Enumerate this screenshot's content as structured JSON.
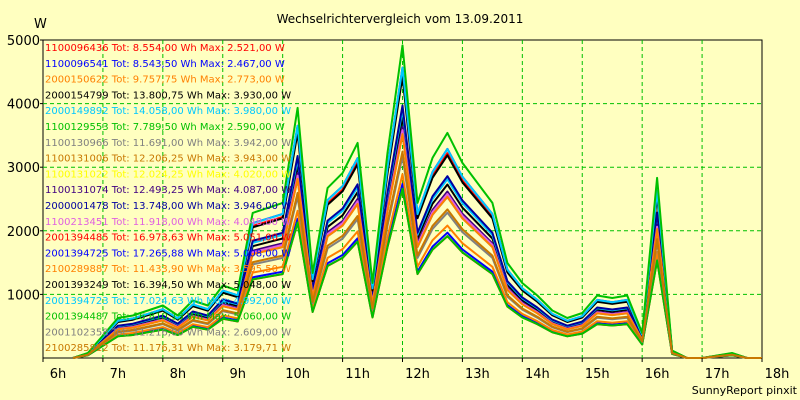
{
  "chart_data": {
    "type": "line",
    "title": "Wechselrichtervergleich vom 13.09.2011",
    "ylabel": "W",
    "footer": "SunnyReport pinxit",
    "ylim": [
      0,
      5000
    ],
    "xlim": [
      6,
      18
    ],
    "x_ticks": [
      {
        "v": 6,
        "label": "6h"
      },
      {
        "v": 7,
        "label": "7h"
      },
      {
        "v": 8,
        "label": "8h"
      },
      {
        "v": 9,
        "label": "9h"
      },
      {
        "v": 10,
        "label": "10h"
      },
      {
        "v": 11,
        "label": "11h"
      },
      {
        "v": 12,
        "label": "12h"
      },
      {
        "v": 13,
        "label": "13h"
      },
      {
        "v": 14,
        "label": "14h"
      },
      {
        "v": 15,
        "label": "15h"
      },
      {
        "v": 16,
        "label": "16h"
      },
      {
        "v": 17,
        "label": "17h"
      },
      {
        "v": 18,
        "label": "18h"
      }
    ],
    "y_ticks": [
      {
        "v": 1000,
        "label": "1000"
      },
      {
        "v": 2000,
        "label": "2000"
      },
      {
        "v": 3000,
        "label": "3000"
      },
      {
        "v": 4000,
        "label": "4000"
      },
      {
        "v": 5000,
        "label": "5000"
      }
    ],
    "grid": true,
    "legend_position": "top-left",
    "x": [
      6.5,
      6.75,
      7,
      7.25,
      7.5,
      7.75,
      8,
      8.25,
      8.5,
      8.75,
      9,
      9.25,
      9.5,
      9.75,
      10,
      10.25,
      10.5,
      10.75,
      11,
      11.25,
      11.5,
      11.75,
      12,
      12.25,
      12.5,
      12.75,
      13,
      13.25,
      13.5,
      13.75,
      14,
      14.25,
      14.5,
      14.75,
      15,
      15.25,
      15.5,
      15.75,
      16,
      16.25,
      16.5,
      16.75,
      17,
      17.25,
      17.5,
      17.75,
      18
    ],
    "profile": [
      0.0,
      0.02,
      0.09,
      0.16,
      0.17,
      0.19,
      0.21,
      0.17,
      0.23,
      0.21,
      0.29,
      0.27,
      0.58,
      0.6,
      0.62,
      1.0,
      0.34,
      0.68,
      0.74,
      0.86,
      0.3,
      0.82,
      1.25,
      0.62,
      0.8,
      0.9,
      0.78,
      0.7,
      0.62,
      0.38,
      0.3,
      0.25,
      0.19,
      0.16,
      0.18,
      0.25,
      0.24,
      0.25,
      0.1,
      0.72,
      0.03,
      0.0,
      0.0,
      0.01,
      0.02,
      0.0,
      0.0
    ],
    "series": [
      {
        "name": "1100096436 Tot: 8.554,00 Wh Max: 2.521,00 W",
        "color": "#ff0000",
        "scale": 2180
      },
      {
        "name": "1100096541 Tot: 8.543,50 Wh Max: 2.467,00 W",
        "color": "#0000ff",
        "scale": 2150
      },
      {
        "name": "2000150622 Tot: 9.757,75 Wh Max: 2.773,00 W",
        "color": "#ff8000",
        "scale": 2300
      },
      {
        "name": "2000154799 Tot: 13.800,75 Wh Max: 3.930,00 W",
        "color": "#000000",
        "scale": 3050
      },
      {
        "name": "2000149892 Tot: 14.058,00 Wh Max: 3.980,00 W",
        "color": "#00c8ff",
        "scale": 3180
      },
      {
        "name": "1100129553 Tot: 7.789,50 Wh Max: 2.590,00 W",
        "color": "#00c000",
        "scale": 2080
      },
      {
        "name": "1100130966 Tot: 11.691,00 Wh Max: 3.942,00 W",
        "color": "#808080",
        "scale": 2780
      },
      {
        "name": "1100131006 Tot: 12.206,25 Wh Max: 3.943,00 W",
        "color": "#c87800",
        "scale": 2900
      },
      {
        "name": "1100131022 Tot: 12.024,25 Wh Max: 4.020,00 W",
        "color": "#ffff00",
        "scale": 2880
      },
      {
        "name": "1100131074 Tot: 12.493,25 Wh Max: 4.087,00 W",
        "color": "#400080",
        "scale": 2980
      },
      {
        "name": "2000001478 Tot: 13.748,00 Wh Max: 3.946,00 W",
        "color": "#0000a0",
        "scale": 3120
      },
      {
        "name": "1100213451 Tot: 11.918,00 Wh Max: 4.048,00 W",
        "color": "#e060e0",
        "scale": 2850
      },
      {
        "name": "2001394485 Tot: 16.973,63 Wh Max: 5.051,00 W",
        "color": "#ff0000",
        "scale": 3600
      },
      {
        "name": "2001394725 Tot: 17.265,88 Wh Max: 5.008,00 W",
        "color": "#0000ff",
        "scale": 3720
      },
      {
        "name": "2100289887 Tot: 11.433,90 Wh Max: 3.595,50 W",
        "color": "#ff8000",
        "scale": 2750
      },
      {
        "name": "2001393249 Tot: 16.394,50 Wh Max: 5.048,00 W",
        "color": "#000000",
        "scale": 3500
      },
      {
        "name": "2001394723 Tot: 17.024,63 Wh Max: 4.992,00 W",
        "color": "#00c8ff",
        "scale": 3650
      },
      {
        "name": "2001394487 Tot: 16.810,13 Wh Max: 5.060,00 W",
        "color": "#00c000",
        "scale": 3980
      },
      {
        "name": "2001102358 Tot: 11.216,00 Wh Max: 2.609,00 W",
        "color": "#808080",
        "scale": 2600
      },
      {
        "name": "2100285812 Tot: 11.176,31 Wh Max: 3.179,71 W",
        "color": "#c87800",
        "scale": 2550
      }
    ]
  }
}
